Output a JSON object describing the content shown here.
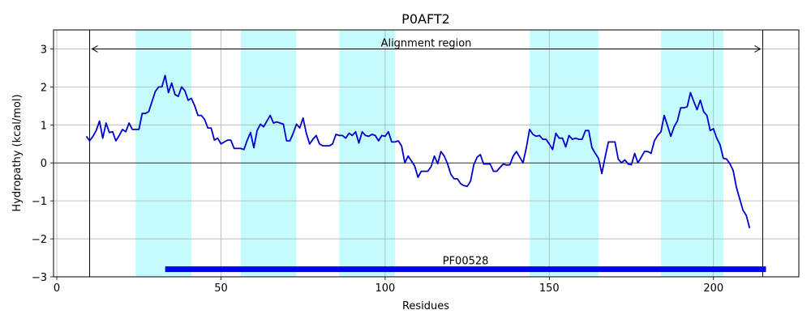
{
  "chart_data": {
    "type": "line",
    "title": "P0AFT2",
    "xlabel": "Residues",
    "ylabel": "Hydropathy (kcal/mol)",
    "xlim": [
      -1,
      226
    ],
    "ylim": [
      -3,
      3.5
    ],
    "x_ticks": [
      0,
      50,
      100,
      150,
      200
    ],
    "y_ticks": [
      -3,
      -2,
      -1,
      0,
      1,
      2,
      3
    ],
    "grid": true,
    "series": [
      {
        "color": "#0000cc",
        "x": [
          9,
          10,
          11,
          12,
          13,
          14,
          15,
          16,
          17,
          18,
          19,
          20,
          21,
          22,
          23,
          24,
          25,
          26,
          27,
          28,
          29,
          30,
          31,
          32,
          33,
          34,
          35,
          36,
          37,
          38,
          39,
          40,
          41,
          42,
          43,
          44,
          45,
          46,
          47,
          48,
          49,
          50,
          51,
          52,
          53,
          54,
          55,
          56,
          57,
          58,
          59,
          60,
          61,
          62,
          63,
          64,
          65,
          66,
          67,
          68,
          69,
          70,
          71,
          72,
          73,
          74,
          75,
          76,
          77,
          78,
          79,
          80,
          81,
          82,
          83,
          84,
          85,
          86,
          87,
          88,
          89,
          90,
          91,
          92,
          93,
          94,
          95,
          96,
          97,
          98,
          99,
          100,
          101,
          102,
          103,
          104,
          105,
          106,
          107,
          108,
          109,
          110,
          111,
          112,
          113,
          114,
          115,
          116,
          117,
          118,
          119,
          120,
          121,
          122,
          123,
          124,
          125,
          126,
          127,
          128,
          129,
          130,
          131,
          132,
          133,
          134,
          135,
          136,
          137,
          138,
          139,
          140,
          141,
          142,
          143,
          144,
          145,
          146,
          147,
          148,
          149,
          150,
          151,
          152,
          153,
          154,
          155,
          156,
          157,
          158,
          159,
          160,
          161,
          162,
          163,
          164,
          165,
          166,
          167,
          168,
          169,
          170,
          171,
          172,
          173,
          174,
          175,
          176,
          177,
          178,
          179,
          180,
          181,
          182,
          183,
          184,
          185,
          186,
          187,
          188,
          189,
          190,
          191,
          192,
          193,
          194,
          195,
          196,
          197,
          198,
          199,
          200,
          201,
          202,
          203,
          204,
          205,
          206,
          207,
          208,
          209,
          210,
          211
        ],
        "y": [
          0.7,
          0.58,
          0.7,
          0.85,
          1.1,
          0.65,
          1.05,
          0.8,
          0.82,
          0.58,
          0.72,
          0.88,
          0.82,
          1.05,
          0.88,
          0.88,
          0.88,
          1.3,
          1.3,
          1.35,
          1.62,
          1.88,
          2.0,
          2.0,
          2.3,
          1.85,
          2.1,
          1.8,
          1.75,
          2.0,
          1.9,
          1.65,
          1.7,
          1.5,
          1.25,
          1.25,
          1.15,
          0.92,
          0.92,
          0.6,
          0.65,
          0.5,
          0.55,
          0.6,
          0.6,
          0.38,
          0.38,
          0.38,
          0.35,
          0.6,
          0.8,
          0.4,
          0.85,
          1.02,
          0.95,
          1.1,
          1.25,
          1.05,
          1.08,
          1.05,
          1.02,
          0.58,
          0.58,
          0.78,
          1.02,
          0.92,
          1.18,
          0.78,
          0.5,
          0.62,
          0.72,
          0.5,
          0.45,
          0.45,
          0.45,
          0.5,
          0.75,
          0.72,
          0.72,
          0.65,
          0.78,
          0.72,
          0.82,
          0.52,
          0.82,
          0.72,
          0.7,
          0.75,
          0.72,
          0.58,
          0.72,
          0.7,
          0.82,
          0.55,
          0.55,
          0.58,
          0.45,
          0.0,
          0.18,
          0.05,
          -0.08,
          -0.38,
          -0.22,
          -0.22,
          -0.22,
          -0.1,
          0.18,
          -0.02,
          0.3,
          0.18,
          -0.02,
          -0.3,
          -0.42,
          -0.42,
          -0.55,
          -0.6,
          -0.62,
          -0.48,
          -0.05,
          0.15,
          0.22,
          -0.03,
          -0.03,
          -0.03,
          -0.22,
          -0.22,
          -0.12,
          -0.03,
          -0.06,
          -0.05,
          0.18,
          0.3,
          0.15,
          0.0,
          0.4,
          0.88,
          0.75,
          0.7,
          0.72,
          0.62,
          0.62,
          0.5,
          0.35,
          0.78,
          0.65,
          0.65,
          0.42,
          0.72,
          0.62,
          0.65,
          0.62,
          0.62,
          0.85,
          0.85,
          0.4,
          0.25,
          0.12,
          -0.28,
          0.15,
          0.55,
          0.55,
          0.55,
          0.1,
          0.0,
          0.08,
          -0.03,
          -0.05,
          0.25,
          0.0,
          0.15,
          0.3,
          0.3,
          0.25,
          0.58,
          0.72,
          0.82,
          1.25,
          0.98,
          0.7,
          0.95,
          1.1,
          1.45,
          1.45,
          1.48,
          1.85,
          1.62,
          1.4,
          1.65,
          1.35,
          1.25,
          0.85,
          0.9,
          0.65,
          0.48,
          0.12,
          0.1,
          -0.02,
          -0.2,
          -0.65,
          -0.95,
          -1.25,
          -1.38,
          -1.72
        ]
      }
    ],
    "shaded_regions": [
      [
        24,
        41
      ],
      [
        56,
        73
      ],
      [
        86,
        103
      ],
      [
        144,
        165
      ],
      [
        184,
        203
      ]
    ],
    "alignment_region": {
      "label": "Alignment region",
      "start": 10,
      "end": 215,
      "y": 3.0
    },
    "domains": [
      {
        "label": "PF00528",
        "start": 33,
        "end": 216,
        "y": -2.8
      }
    ]
  }
}
